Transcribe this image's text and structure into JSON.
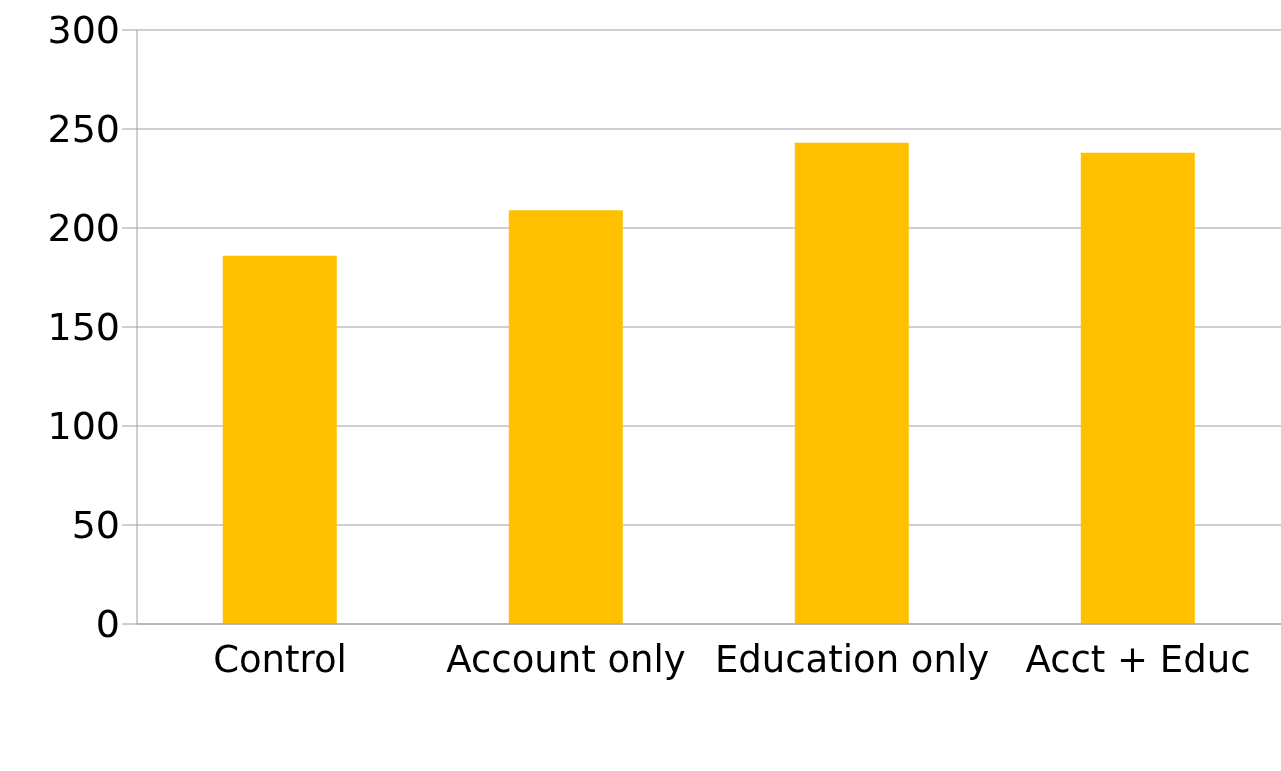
{
  "chart_data": {
    "type": "bar",
    "categories": [
      "Control",
      "Account only",
      "Education only",
      "Acct + Educ"
    ],
    "values": [
      186,
      209,
      243,
      238
    ],
    "color": "#ffc000",
    "ylim": [
      0,
      300
    ],
    "yticks": [
      0,
      50,
      100,
      150,
      200,
      250,
      300
    ],
    "grid": "y"
  }
}
